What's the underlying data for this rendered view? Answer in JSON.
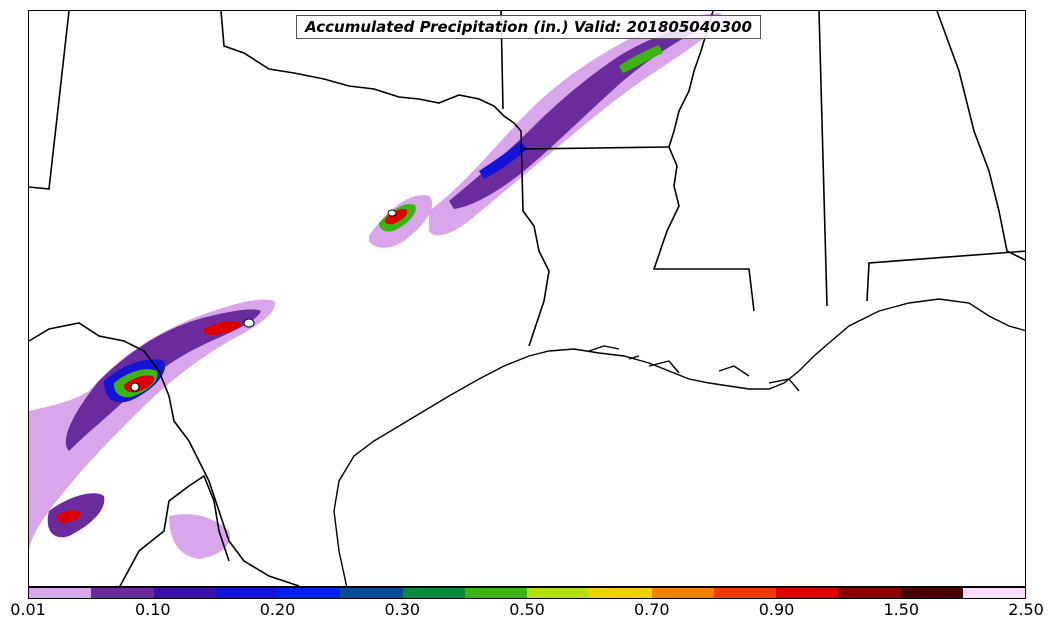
{
  "title": "Accumulated Precipitation (in.) Valid: 201805040300",
  "colorbar": {
    "colors": [
      "#d9a6ec",
      "#6a2c9c",
      "#3a10a8",
      "#1414d8",
      "#0020ee",
      "#0a4c9a",
      "#0a8a3c",
      "#3cb414",
      "#b4e014",
      "#f0d200",
      "#f08200",
      "#f03c00",
      "#dc0000",
      "#8c0000",
      "#4a0000",
      "#fcdcf8"
    ],
    "tick_labels": [
      "0.01",
      "0.10",
      "0.20",
      "0.30",
      "0.50",
      "0.70",
      "0.90",
      "1.50",
      "2.50"
    ]
  }
}
